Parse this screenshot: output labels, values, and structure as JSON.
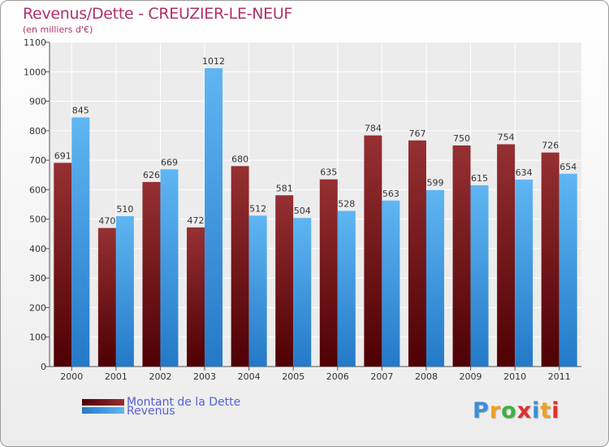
{
  "chart_data": {
    "type": "bar",
    "title": "Revenus/Dette - CREUZIER-LE-NEUF",
    "ylabel": "(en milliers d'€)",
    "xlabel": "",
    "ylim": [
      0,
      1100
    ],
    "yticks": [
      "0",
      "100",
      "200",
      "300",
      "400",
      "500",
      "600",
      "700",
      "800",
      "900",
      "1000",
      "1100"
    ],
    "grid": true,
    "categories": [
      "2000",
      "2001",
      "2002",
      "2003",
      "2004",
      "2005",
      "2006",
      "2007",
      "2008",
      "2009",
      "2010",
      "2011"
    ],
    "series": [
      {
        "name": "Montant de la Dette",
        "color": "#6d0f13",
        "values": [
          691,
          470,
          626,
          472,
          680,
          581,
          635,
          784,
          767,
          750,
          754,
          726
        ]
      },
      {
        "name": "Revenus",
        "color": "#3c9ee6",
        "values": [
          845,
          510,
          669,
          1012,
          512,
          504,
          528,
          563,
          599,
          615,
          634,
          654
        ]
      }
    ],
    "legend_position": "bottom-left"
  },
  "logo": {
    "letters": [
      "P",
      "r",
      "o",
      "x",
      "i",
      "t",
      "i"
    ],
    "colors": [
      "#3b8ed8",
      "#f0a020",
      "#40b040",
      "#e03030",
      "#3b8ed8",
      "#f0a020",
      "#e03030"
    ]
  }
}
